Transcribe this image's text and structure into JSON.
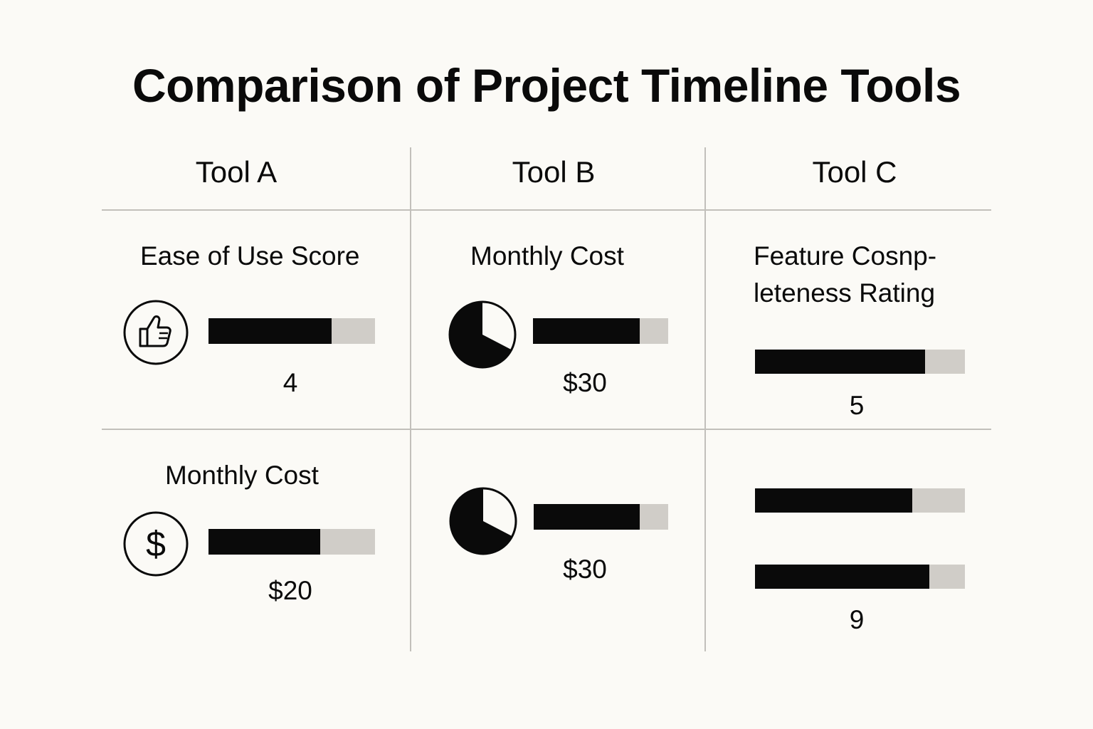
{
  "chart_data": {
    "type": "table",
    "title": "Comparison of Project Timeline Tools",
    "columns": [
      "Tool A",
      "Tool B",
      "Tool C"
    ],
    "cells": [
      {
        "id": "a1",
        "label": "Ease of Use Score",
        "icon": "thumbs-up-icon",
        "fill": 0.74,
        "value_text": "4"
      },
      {
        "id": "b1",
        "label": "Monthly Cost",
        "icon": "pie-chart-icon",
        "fill": 0.79,
        "value_text": "$30"
      },
      {
        "id": "c1",
        "label_lines": [
          "Feature Cosnp-",
          "leteness Rating"
        ],
        "icon": "",
        "fill": 0.81,
        "value_text": "5"
      },
      {
        "id": "a2",
        "label": "Monthly Cost",
        "icon": "dollar-icon",
        "fill": 0.67,
        "value_text": "$20"
      },
      {
        "id": "b2",
        "label": "",
        "icon": "pie-chart-icon",
        "fill": 0.79,
        "value_text": "$30"
      },
      {
        "id": "c2a",
        "label": "",
        "icon": "",
        "fill": 0.75,
        "value_text": ""
      },
      {
        "id": "c2b",
        "label": "",
        "icon": "",
        "fill": 0.83,
        "value_text": "9"
      }
    ]
  },
  "colors": {
    "background": "#fbfaf6",
    "bar_fill": "#0a0a0a",
    "bar_track": "#d0cdc8",
    "grid_line": "#c2c0bb"
  }
}
